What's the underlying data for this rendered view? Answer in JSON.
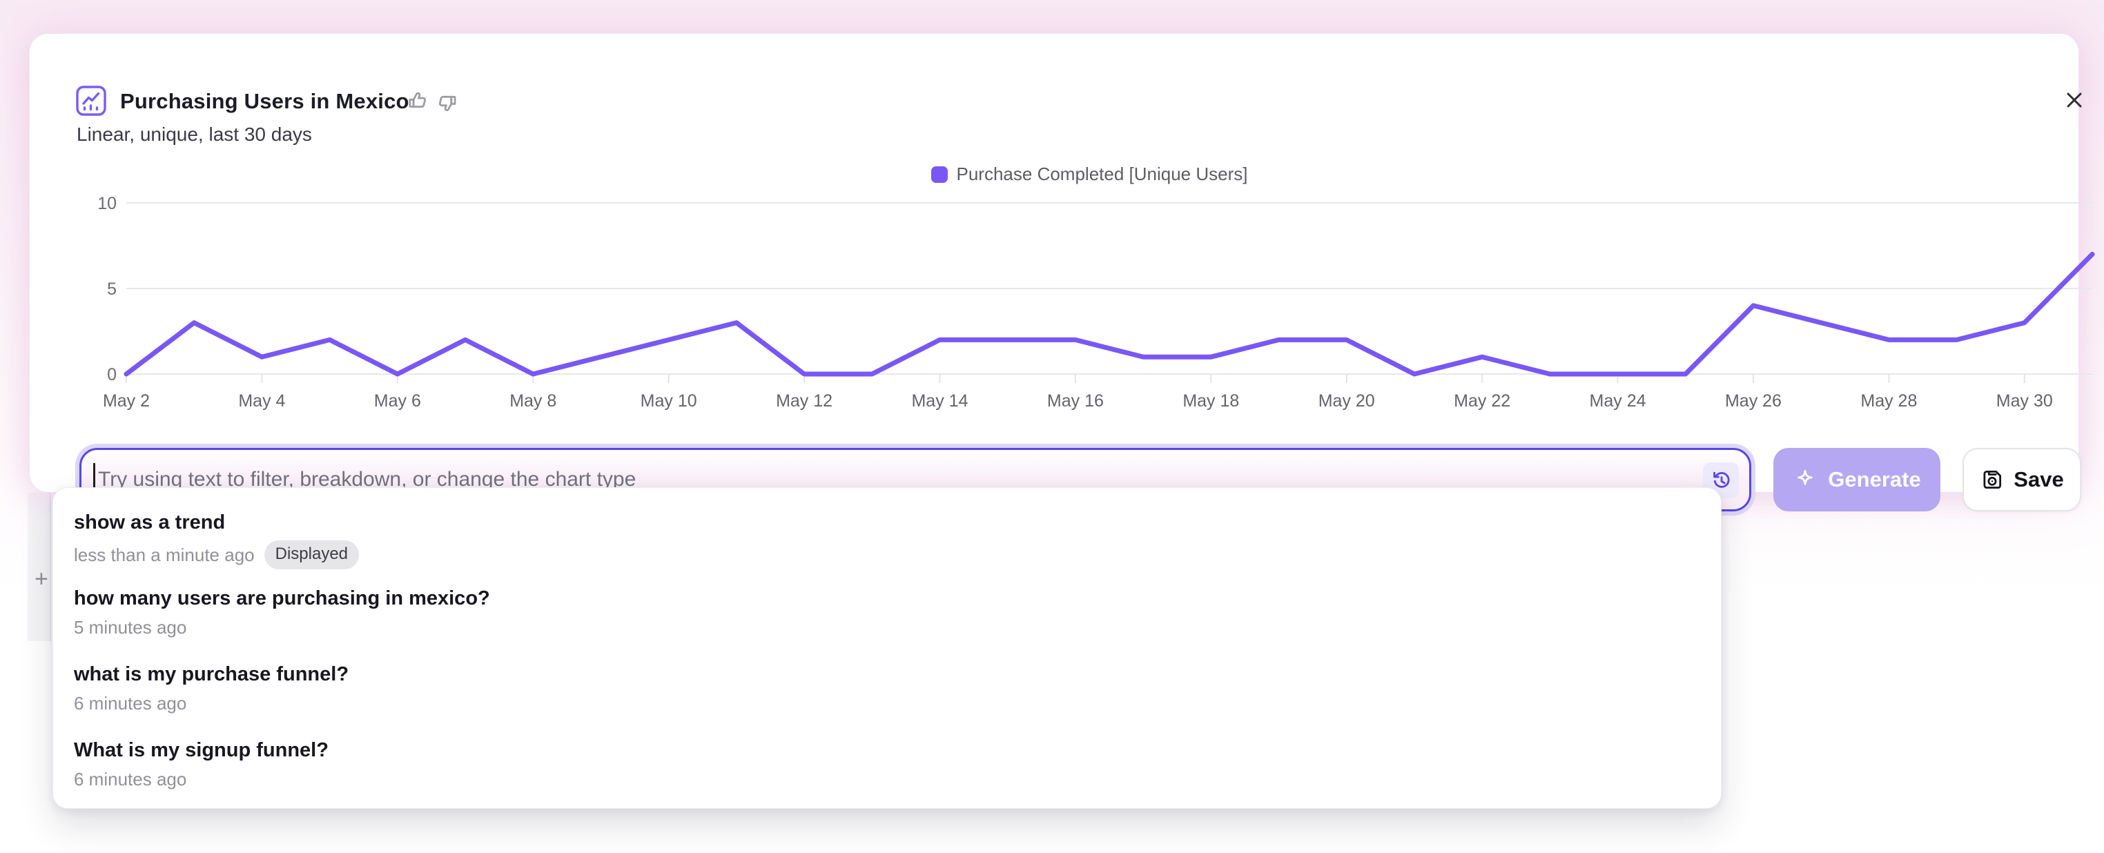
{
  "window": {
    "close_icon": "✕"
  },
  "header": {
    "title": "Purchasing Users in Mexico",
    "subtitle": "Linear, unique, last 30 days",
    "chart_icon": "trend-line-chart",
    "feedback_icons": [
      "thumbs-up",
      "thumbs-down"
    ]
  },
  "colors": {
    "accent": "#7857f6",
    "input_border": "#5645e6",
    "generate_bg": "#b5a7f1",
    "grid": "#e8e8ec"
  },
  "chart_data": {
    "type": "line",
    "x": [
      "May 2",
      "May 3",
      "May 4",
      "May 5",
      "May 6",
      "May 7",
      "May 8",
      "May 9",
      "May 10",
      "May 11",
      "May 12",
      "May 13",
      "May 14",
      "May 15",
      "May 16",
      "May 17",
      "May 18",
      "May 19",
      "May 20",
      "May 21",
      "May 22",
      "May 23",
      "May 24",
      "May 25",
      "May 26",
      "May 27",
      "May 28",
      "May 29",
      "May 30",
      "May 31"
    ],
    "series": [
      {
        "name": "Purchase Completed [Unique Users]",
        "color": "#7857f6",
        "values": [
          0,
          3,
          1,
          2,
          0,
          2,
          0,
          1,
          2,
          3,
          0,
          0,
          2,
          2,
          2,
          1,
          1,
          2,
          2,
          0,
          1,
          0,
          0,
          0,
          4,
          3,
          2,
          2,
          3,
          7
        ]
      }
    ],
    "ylim": [
      0,
      10
    ],
    "yticks": [
      0,
      5,
      10
    ],
    "x_label_step": 2,
    "grid": "horizontal",
    "legend_position": "top-center"
  },
  "prompt_bar": {
    "placeholder": "Try using text to filter, breakdown, or change the chart type",
    "history_icon": "history-clock",
    "generate": {
      "label": "Generate",
      "icon": "sparkle",
      "enabled": false
    },
    "save": {
      "label": "Save",
      "icon": "save-floppy"
    }
  },
  "history_dropdown": {
    "items": [
      {
        "query": "show as a trend",
        "time": "less than a minute ago",
        "badge": "Displayed"
      },
      {
        "query": "how many users are purchasing in mexico?",
        "time": "5 minutes ago",
        "badge": ""
      },
      {
        "query": "what is my purchase funnel?",
        "time": "6 minutes ago",
        "badge": ""
      },
      {
        "query": "What is my signup funnel?",
        "time": "6 minutes ago",
        "badge": ""
      }
    ]
  },
  "background": {
    "plus_icon": "+"
  }
}
